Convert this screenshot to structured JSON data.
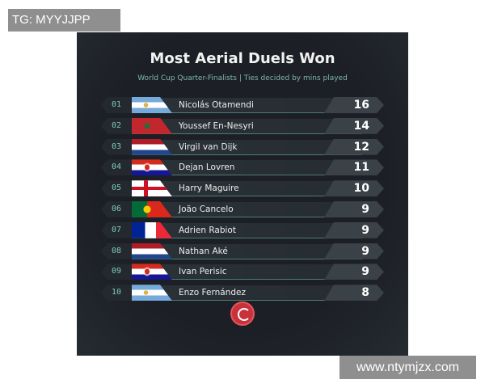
{
  "watermarks": {
    "top": "TG: MYYJJPP",
    "bottom": "www.ntymjzx.com"
  },
  "title": "Most Aerial Duels Won",
  "subtitle": "World Cup Quarter-Finalists | Ties decided by mins played",
  "rows": [
    {
      "rank": "01",
      "name": "Nicolás Otamendi",
      "value": "16",
      "flag": "argentina"
    },
    {
      "rank": "02",
      "name": "Youssef En-Nesyri",
      "value": "14",
      "flag": "morocco"
    },
    {
      "rank": "03",
      "name": "Virgil van Dijk",
      "value": "12",
      "flag": "netherlands"
    },
    {
      "rank": "04",
      "name": "Dejan Lovren",
      "value": "11",
      "flag": "croatia"
    },
    {
      "rank": "05",
      "name": "Harry Maguire",
      "value": "10",
      "flag": "england"
    },
    {
      "rank": "06",
      "name": "João Cancelo",
      "value": "9",
      "flag": "portugal"
    },
    {
      "rank": "07",
      "name": "Adrien Rabiot",
      "value": "9",
      "flag": "france"
    },
    {
      "rank": "08",
      "name": "Nathan Aké",
      "value": "9",
      "flag": "netherlands"
    },
    {
      "rank": "09",
      "name": "Ivan Perisic",
      "value": "9",
      "flag": "croatia"
    },
    {
      "rank": "10",
      "name": "Enzo Fernández",
      "value": "8",
      "flag": "argentina"
    }
  ],
  "logo": "brand-logo"
}
